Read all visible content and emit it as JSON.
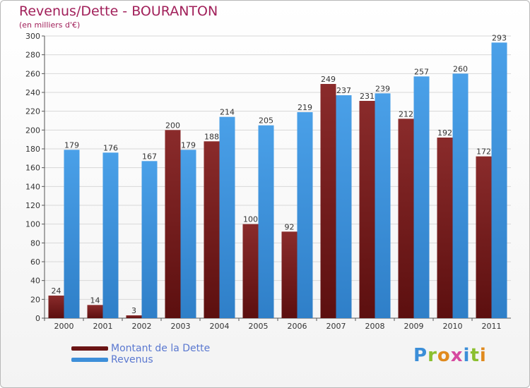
{
  "title": "Revenus/Dette - BOURANTON",
  "subtitle": "(en milliers d'€)",
  "logo": {
    "text": "Proxiti",
    "letter_colors": [
      "#3b8ed8",
      "#8bbf2f",
      "#e08a1e",
      "#d64aa0",
      "#3b8ed8",
      "#8bbf2f",
      "#e08a1e"
    ]
  },
  "colors": {
    "debt": "#7a1f1f",
    "revenue": "#3d8fd9",
    "grid": "#d8d8d8",
    "axis_text": "#333333"
  },
  "chart_data": {
    "type": "bar",
    "title": "Revenus/Dette - BOURANTON",
    "subtitle": "(en milliers d'€)",
    "categories": [
      "2000",
      "2001",
      "2002",
      "2003",
      "2004",
      "2005",
      "2006",
      "2007",
      "2008",
      "2009",
      "2010",
      "2011"
    ],
    "series": [
      {
        "name": "Montant de la Dette",
        "values": [
          24,
          14,
          3,
          200,
          188,
          100,
          92,
          249,
          231,
          212,
          192,
          172
        ]
      },
      {
        "name": "Revenus",
        "values": [
          179,
          176,
          167,
          179,
          214,
          205,
          219,
          237,
          239,
          257,
          260,
          293
        ]
      }
    ],
    "ylim": [
      0,
      300
    ],
    "yticks": [
      0,
      20,
      40,
      60,
      80,
      100,
      120,
      140,
      160,
      180,
      200,
      220,
      240,
      260,
      280,
      300
    ],
    "grid": true,
    "legend_position": "bottom-left",
    "xlabel": "",
    "ylabel": ""
  }
}
